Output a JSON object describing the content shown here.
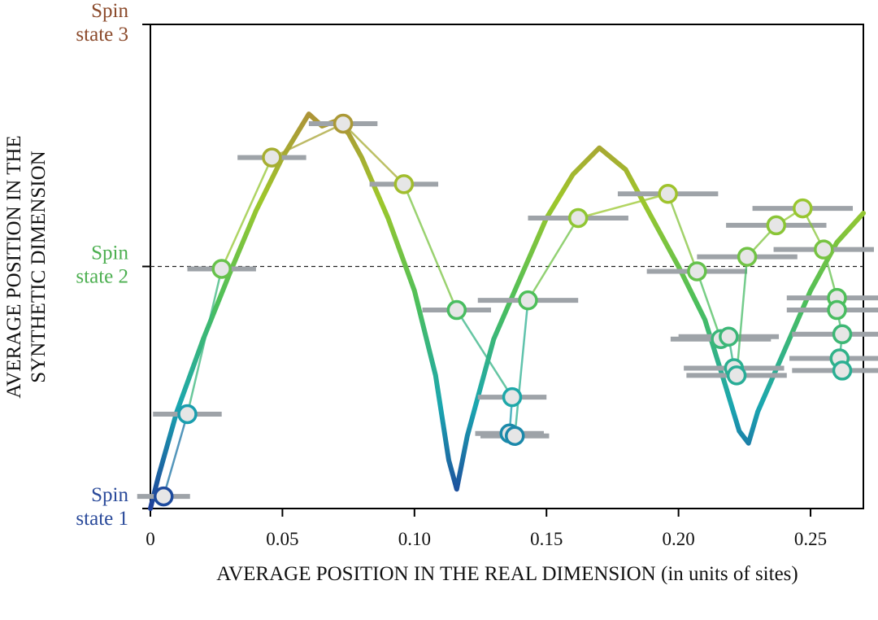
{
  "chart_data": {
    "type": "scatter",
    "title": "",
    "xlabel": "AVERAGE POSITION IN THE REAL DIMENSION (in units of sites)",
    "ylabel_lines": [
      "AVERAGE POSITION IN THE",
      "SYNTHETIC DIMENSION"
    ],
    "xlim": [
      0,
      0.27
    ],
    "ylim": [
      1,
      3
    ],
    "x_ticks": [
      0,
      0.05,
      0.1,
      0.15,
      0.2,
      0.25
    ],
    "x_tick_labels": [
      "0",
      "0.05",
      "0.10",
      "0.15",
      "0.20",
      "0.25"
    ],
    "y_ticks": [
      {
        "value": 3,
        "lines": [
          "Spin",
          "state 3"
        ],
        "color": "#8b4a2b"
      },
      {
        "value": 2,
        "lines": [
          "Spin",
          "state 2"
        ],
        "color": "#4caf50"
      },
      {
        "value": 1,
        "lines": [
          "Spin",
          "state 1"
        ],
        "color": "#2a4a9a"
      }
    ],
    "reference_line": {
      "y": 2,
      "style": "dashed"
    },
    "grid": false,
    "theory_curve": [
      [
        0.0,
        1.0
      ],
      [
        0.003,
        1.13
      ],
      [
        0.01,
        1.4
      ],
      [
        0.02,
        1.7
      ],
      [
        0.03,
        1.97
      ],
      [
        0.04,
        2.23
      ],
      [
        0.05,
        2.45
      ],
      [
        0.06,
        2.63
      ],
      [
        0.065,
        2.58
      ],
      [
        0.07,
        2.6
      ],
      [
        0.075,
        2.55
      ],
      [
        0.08,
        2.45
      ],
      [
        0.09,
        2.2
      ],
      [
        0.1,
        1.9
      ],
      [
        0.108,
        1.55
      ],
      [
        0.113,
        1.2
      ],
      [
        0.116,
        1.08
      ],
      [
        0.12,
        1.3
      ],
      [
        0.13,
        1.7
      ],
      [
        0.14,
        1.95
      ],
      [
        0.15,
        2.2
      ],
      [
        0.16,
        2.38
      ],
      [
        0.17,
        2.49
      ],
      [
        0.18,
        2.4
      ],
      [
        0.19,
        2.2
      ],
      [
        0.2,
        2.0
      ],
      [
        0.21,
        1.78
      ],
      [
        0.218,
        1.5
      ],
      [
        0.223,
        1.32
      ],
      [
        0.2265,
        1.27
      ],
      [
        0.23,
        1.4
      ],
      [
        0.24,
        1.65
      ],
      [
        0.25,
        1.9
      ],
      [
        0.26,
        2.1
      ],
      [
        0.27,
        2.22
      ]
    ],
    "series": [
      {
        "name": "",
        "points": [
          {
            "x": 0.005,
            "y": 1.05,
            "xerr": 0.01
          },
          {
            "x": 0.014,
            "y": 1.39,
            "xerr": 0.013
          },
          {
            "x": 0.027,
            "y": 1.99,
            "xerr": 0.013
          },
          {
            "x": 0.046,
            "y": 2.45,
            "xerr": 0.013
          },
          {
            "x": 0.073,
            "y": 2.59,
            "xerr": 0.013
          },
          {
            "x": 0.096,
            "y": 2.34,
            "xerr": 0.013
          },
          {
            "x": 0.116,
            "y": 1.82,
            "xerr": 0.013
          },
          {
            "x": 0.137,
            "y": 1.46,
            "xerr": 0.013
          },
          {
            "x": 0.136,
            "y": 1.31,
            "xerr": 0.013
          },
          {
            "x": 0.138,
            "y": 1.3,
            "xerr": 0.013
          },
          {
            "x": 0.143,
            "y": 1.86,
            "xerr": 0.019
          },
          {
            "x": 0.162,
            "y": 2.2,
            "xerr": 0.019
          },
          {
            "x": 0.196,
            "y": 2.3,
            "xerr": 0.019
          },
          {
            "x": 0.207,
            "y": 1.98,
            "xerr": 0.019
          },
          {
            "x": 0.216,
            "y": 1.7,
            "xerr": 0.019
          },
          {
            "x": 0.219,
            "y": 1.71,
            "xerr": 0.019
          },
          {
            "x": 0.221,
            "y": 1.58,
            "xerr": 0.019
          },
          {
            "x": 0.222,
            "y": 1.55,
            "xerr": 0.019
          },
          {
            "x": 0.226,
            "y": 2.04,
            "xerr": 0.019
          },
          {
            "x": 0.237,
            "y": 2.17,
            "xerr": 0.019
          },
          {
            "x": 0.247,
            "y": 2.24,
            "xerr": 0.019
          },
          {
            "x": 0.255,
            "y": 2.07,
            "xerr": 0.019
          },
          {
            "x": 0.26,
            "y": 1.87,
            "xerr": 0.019
          },
          {
            "x": 0.26,
            "y": 1.82,
            "xerr": 0.019
          },
          {
            "x": 0.262,
            "y": 1.72,
            "xerr": 0.019
          },
          {
            "x": 0.261,
            "y": 1.62,
            "xerr": 0.019
          },
          {
            "x": 0.262,
            "y": 1.57,
            "xerr": 0.019
          }
        ]
      }
    ]
  },
  "colors": {
    "axis": "#000000",
    "error_bar": "#9ea3a8",
    "point_fill": "#e6e6e6",
    "gradient_stops": [
      "#1e3f9a",
      "#1aa6b0",
      "#4cbf5b",
      "#9ec72b",
      "#b08a3a"
    ]
  }
}
